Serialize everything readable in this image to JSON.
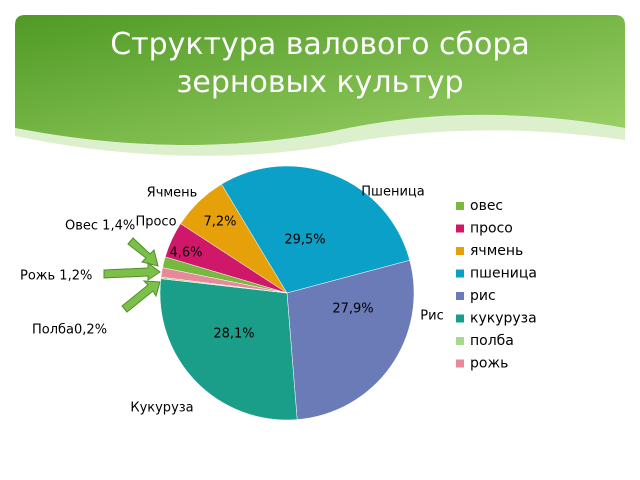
{
  "chart_data": {
    "type": "pie",
    "title": "Структура валового сбора зерновых культур",
    "categories": [
      "овес",
      "просо",
      "ячмень",
      "пшеница",
      "рис",
      "кукуруза",
      "полба",
      "рожь"
    ],
    "values": [
      1.4,
      4.6,
      7.2,
      29.5,
      27.9,
      28.1,
      0.2,
      1.2
    ],
    "value_labels": [
      "Овес 1,4%",
      "4,6%",
      "7,2%",
      "29,5%",
      "27,9%",
      "28,1%",
      "Полба0,2%",
      "Рожь 1,2%"
    ],
    "slice_labels": [
      null,
      "Просо",
      "Ячмень",
      "Пшеница",
      "Рис",
      "Кукуруза",
      null,
      null
    ],
    "colors": [
      "#77b83e",
      "#d0186a",
      "#e6a10a",
      "#0aa0c8",
      "#6a7bb8",
      "#1a9e8a",
      "#a8d88a",
      "#e8899a"
    ],
    "legend": "right"
  }
}
